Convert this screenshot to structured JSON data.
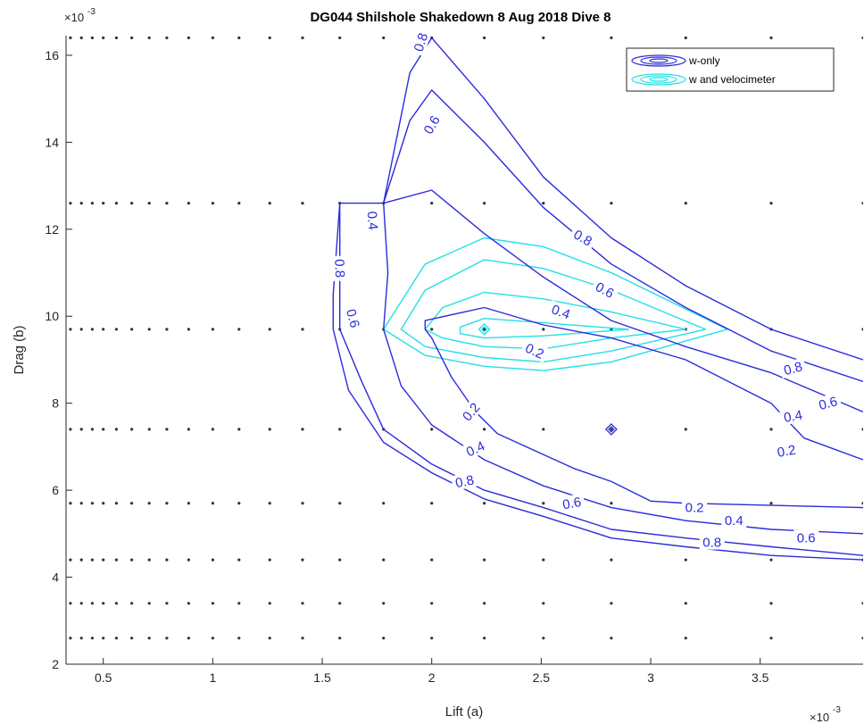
{
  "chart_data": {
    "type": "contour",
    "title": "DG044  Shilshole Shakedown 8 Aug 2018 Dive 8",
    "xlabel": "Lift (a)",
    "ylabel": "Drag (b)",
    "x_exponent": "×10",
    "x_exponent_power": "-3",
    "y_exponent": "×10",
    "y_exponent_power": "-3",
    "xlim": [
      0.33,
      3.97
    ],
    "ylim": [
      2.0,
      16.45
    ],
    "x_ticks": [
      0.5,
      1,
      1.5,
      2,
      2.5,
      3,
      3.5
    ],
    "x_tick_labels": [
      "0.5",
      "1",
      "1.5",
      "2",
      "2.5",
      "3",
      "3.5"
    ],
    "y_ticks": [
      2,
      4,
      6,
      8,
      10,
      12,
      14,
      16
    ],
    "y_tick_labels": [
      "2",
      "4",
      "6",
      "8",
      "10",
      "12",
      "14",
      "16"
    ],
    "grid_points": {
      "x": [
        0.35,
        0.4,
        0.45,
        0.5,
        0.56,
        0.63,
        0.71,
        0.79,
        0.89,
        1.0,
        1.12,
        1.26,
        1.41,
        1.58,
        1.78,
        2.0,
        2.24,
        2.51,
        2.82,
        3.16,
        3.55,
        3.97
      ],
      "y": [
        2.6,
        3.4,
        4.4,
        5.7,
        7.4,
        9.7,
        12.6,
        16.4
      ]
    },
    "legend": {
      "position": "top-right",
      "entries": [
        {
          "label": "w-only",
          "color": "#2b2bdc"
        },
        {
          "label": "w and velocimeter",
          "color": "#22e0e8"
        }
      ]
    },
    "series": [
      {
        "name": "w-only",
        "color": "#2b2bdc",
        "markers": [
          [
            2.82,
            7.4
          ]
        ],
        "levels": [
          {
            "level": 0.2,
            "paths": [
              [
                [
                  2.24,
                  10.2
                ],
                [
                  1.97,
                  9.9
                ],
                [
                  1.97,
                  9.7
                ],
                [
                  2.0,
                  9.5
                ],
                [
                  2.09,
                  8.6
                ],
                [
                  2.2,
                  7.8
                ],
                [
                  2.3,
                  7.3
                ],
                [
                  2.65,
                  6.5
                ],
                [
                  2.82,
                  6.2
                ],
                [
                  3.0,
                  5.75
                ],
                [
                  3.16,
                  5.7
                ],
                [
                  3.97,
                  5.6
                ]
              ],
              [
                [
                  2.24,
                  10.2
                ],
                [
                  2.51,
                  9.8
                ],
                [
                  2.82,
                  9.5
                ],
                [
                  3.16,
                  9.0
                ],
                [
                  3.55,
                  8.0
                ],
                [
                  3.7,
                  7.2
                ],
                [
                  3.97,
                  6.7
                ]
              ]
            ]
          },
          {
            "level": 0.4,
            "paths": [
              [
                [
                  1.78,
                  12.6
                ],
                [
                  1.8,
                  11.0
                ],
                [
                  1.78,
                  9.7
                ],
                [
                  1.86,
                  8.4
                ],
                [
                  2.0,
                  7.5
                ],
                [
                  2.24,
                  6.7
                ],
                [
                  2.51,
                  6.1
                ],
                [
                  2.82,
                  5.6
                ],
                [
                  3.16,
                  5.3
                ],
                [
                  3.55,
                  5.1
                ],
                [
                  3.97,
                  5.0
                ]
              ],
              [
                [
                  1.78,
                  12.6
                ],
                [
                  2.0,
                  12.9
                ],
                [
                  2.24,
                  11.9
                ],
                [
                  2.51,
                  10.9
                ],
                [
                  2.82,
                  9.9
                ],
                [
                  3.16,
                  9.3
                ],
                [
                  3.55,
                  8.7
                ],
                [
                  3.97,
                  7.8
                ]
              ]
            ]
          },
          {
            "level": 0.6,
            "paths": [
              [
                [
                  1.78,
                  12.6
                ],
                [
                  1.58,
                  12.6
                ],
                [
                  1.58,
                  11.0
                ],
                [
                  1.58,
                  9.7
                ],
                [
                  1.68,
                  8.5
                ],
                [
                  1.78,
                  7.4
                ],
                [
                  2.0,
                  6.6
                ],
                [
                  2.24,
                  6.0
                ],
                [
                  2.51,
                  5.6
                ],
                [
                  2.82,
                  5.1
                ],
                [
                  3.16,
                  4.9
                ],
                [
                  3.55,
                  4.7
                ],
                [
                  3.97,
                  4.5
                ]
              ],
              [
                [
                  1.78,
                  12.6
                ],
                [
                  1.9,
                  14.5
                ],
                [
                  2.0,
                  15.2
                ],
                [
                  2.24,
                  14.0
                ],
                [
                  2.51,
                  12.5
                ],
                [
                  2.82,
                  11.2
                ],
                [
                  3.16,
                  10.2
                ],
                [
                  3.55,
                  9.2
                ],
                [
                  3.97,
                  8.5
                ]
              ]
            ]
          },
          {
            "level": 0.8,
            "paths": [
              [
                [
                  1.58,
                  12.6
                ],
                [
                  1.55,
                  10.5
                ],
                [
                  1.55,
                  9.7
                ],
                [
                  1.62,
                  8.3
                ],
                [
                  1.78,
                  7.1
                ],
                [
                  2.0,
                  6.4
                ],
                [
                  2.24,
                  5.8
                ],
                [
                  2.51,
                  5.4
                ],
                [
                  2.82,
                  4.9
                ],
                [
                  3.16,
                  4.7
                ],
                [
                  3.55,
                  4.5
                ],
                [
                  3.97,
                  4.4
                ]
              ],
              [
                [
                  1.78,
                  12.6
                ],
                [
                  1.9,
                  15.6
                ],
                [
                  2.0,
                  16.4
                ],
                [
                  2.24,
                  15.0
                ],
                [
                  2.51,
                  13.2
                ],
                [
                  2.82,
                  11.8
                ],
                [
                  3.16,
                  10.7
                ],
                [
                  3.55,
                  9.7
                ],
                [
                  3.97,
                  9.0
                ]
              ]
            ]
          }
        ],
        "labels": [
          {
            "text": "0.8",
            "at": [
              1.95,
              16.3
            ],
            "angle": -72
          },
          {
            "text": "0.6",
            "at": [
              2.0,
              14.4
            ],
            "angle": -60
          },
          {
            "text": "0.4",
            "at": [
              1.73,
              12.2
            ],
            "angle": 85
          },
          {
            "text": "0.8",
            "at": [
              1.58,
              11.1
            ],
            "angle": 88
          },
          {
            "text": "0.6",
            "at": [
              1.64,
              9.95
            ],
            "angle": 75
          },
          {
            "text": "0.8",
            "at": [
              2.69,
              11.8
            ],
            "angle": 30
          },
          {
            "text": "0.6",
            "at": [
              2.79,
              10.6
            ],
            "angle": 28
          },
          {
            "text": "0.4",
            "at": [
              2.59,
              10.1
            ],
            "angle": 20
          },
          {
            "text": "0.2",
            "at": [
              2.47,
              9.2
            ],
            "angle": 25
          },
          {
            "text": "0.2",
            "at": [
              2.18,
              7.8
            ],
            "angle": -50
          },
          {
            "text": "0.4",
            "at": [
              2.2,
              6.95
            ],
            "angle": -25
          },
          {
            "text": "0.8",
            "at": [
              2.15,
              6.2
            ],
            "angle": -12
          },
          {
            "text": "0.6",
            "at": [
              2.64,
              5.7
            ],
            "angle": -10
          },
          {
            "text": "0.2",
            "at": [
              3.2,
              5.6
            ],
            "angle": 0
          },
          {
            "text": "0.4",
            "at": [
              3.38,
              5.3
            ],
            "angle": 0
          },
          {
            "text": "0.8",
            "at": [
              3.28,
              4.8
            ],
            "angle": 0
          },
          {
            "text": "0.6",
            "at": [
              3.71,
              4.9
            ],
            "angle": 0
          },
          {
            "text": "0.8",
            "at": [
              3.65,
              8.8
            ],
            "angle": -15
          },
          {
            "text": "0.6",
            "at": [
              3.81,
              8.0
            ],
            "angle": -15
          },
          {
            "text": "0.4",
            "at": [
              3.65,
              7.7
            ],
            "angle": -10
          },
          {
            "text": "0.2",
            "at": [
              3.62,
              6.9
            ],
            "angle": -10
          }
        ]
      },
      {
        "name": "w and velocimeter",
        "color": "#22e0e8",
        "markers": [
          [
            2.24,
            9.7
          ]
        ],
        "levels": [
          {
            "level": 0.2,
            "closed": true,
            "path": [
              [
                2.13,
                9.75
              ],
              [
                2.24,
                9.95
              ],
              [
                2.51,
                9.85
              ],
              [
                2.9,
                9.7
              ],
              [
                2.51,
                9.55
              ],
              [
                2.24,
                9.5
              ],
              [
                2.13,
                9.6
              ]
            ]
          },
          {
            "level": 0.4,
            "closed": true,
            "path": [
              [
                1.97,
                9.7
              ],
              [
                2.05,
                10.2
              ],
              [
                2.24,
                10.55
              ],
              [
                2.51,
                10.4
              ],
              [
                2.82,
                10.1
              ],
              [
                3.16,
                9.7
              ],
              [
                2.82,
                9.5
              ],
              [
                2.51,
                9.25
              ],
              [
                2.24,
                9.3
              ],
              [
                2.05,
                9.5
              ]
            ]
          },
          {
            "level": 0.6,
            "closed": true,
            "path": [
              [
                1.86,
                9.7
              ],
              [
                1.97,
                10.6
              ],
              [
                2.24,
                11.3
              ],
              [
                2.51,
                11.1
              ],
              [
                2.82,
                10.6
              ],
              [
                3.25,
                9.7
              ],
              [
                2.82,
                9.2
              ],
              [
                2.51,
                8.95
              ],
              [
                2.24,
                9.05
              ],
              [
                1.97,
                9.3
              ]
            ]
          },
          {
            "level": 0.8,
            "closed": true,
            "path": [
              [
                1.78,
                9.7
              ],
              [
                1.97,
                11.2
              ],
              [
                2.24,
                11.8
              ],
              [
                2.51,
                11.6
              ],
              [
                2.82,
                11.0
              ],
              [
                3.35,
                9.7
              ],
              [
                2.82,
                8.95
              ],
              [
                2.51,
                8.75
              ],
              [
                2.24,
                8.85
              ],
              [
                1.97,
                9.1
              ]
            ]
          }
        ]
      }
    ]
  }
}
